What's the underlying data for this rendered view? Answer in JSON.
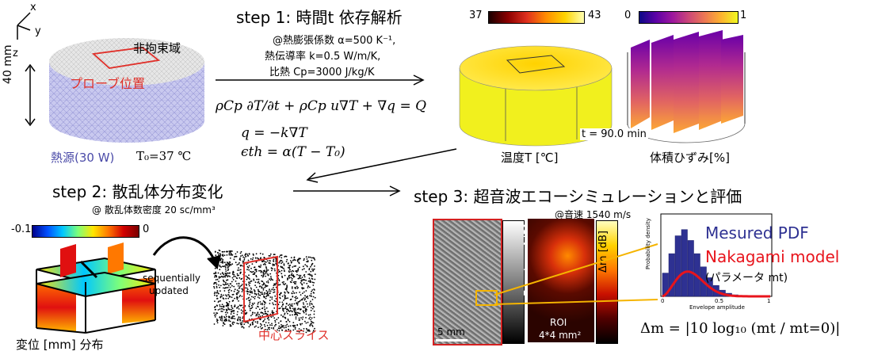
{
  "axes": {
    "x": "x",
    "y": "y",
    "z": "z"
  },
  "model": {
    "height_label": "40 mm",
    "unconstrained_label": "非拘束域",
    "probe_label": "プローブ位置",
    "heat_source_label": "熱源(30 W)",
    "t0_label": "T₀=37 ℃"
  },
  "step1": {
    "title": "step 1: 時間t 依存解析",
    "param1": "@熱膨張係数 α=500 K⁻¹,",
    "param2": "熱伝導率 k=0.5 W/m/K,",
    "param3": "比熱 Cp=3000 J/kg/K",
    "eq1": "ρCp ∂T/∂t + ρCp u∇T + ∇q = Q",
    "eq2": "q = −k∇T",
    "eq3": "ϵth = α(T − T₀)"
  },
  "results": {
    "temp_min": "37",
    "temp_max": "43",
    "strain_min": "0",
    "strain_max": "1",
    "time_label": "t = 90.0 min",
    "temp_caption": "温度T [℃]",
    "strain_caption": "体積ひずみ[%]"
  },
  "step2": {
    "title": "step 2: 散乱体分布変化",
    "subtitle": "@ 散乱体数密度 20 sc/mm³",
    "cb_min": "-0.1",
    "cb_max": "0",
    "seq_label_1": "sequentially",
    "seq_label_2": "updated",
    "disp_caption": "変位 [mm] 分布",
    "slice_label": "中心スライス"
  },
  "step3": {
    "title": "step 3: 超音波エコーシミュレーションと評価",
    "subtitle": "@音速 1540 m/s",
    "envelope_label": "Envelope [dB]",
    "dm_label": "Δm [dB]",
    "scale_label": "5 mm",
    "roi_label_1": "ROI",
    "roi_label_2": "4*4 mm²",
    "hist_ylabel": "Probability density",
    "hist_xlabel": "Envelope amplitude",
    "hist_ticks": [
      "0",
      "0.5",
      "1"
    ],
    "legend_pdf": "Mesured PDF",
    "legend_model": "Nakagami model",
    "legend_param": "(パラメータ mt)",
    "dm_formula": "Δm = |10 log₁₀ (mt / mt=0)|"
  },
  "colors": {
    "probe_red": "#e0302a",
    "heat_blue": "#4b4ba8",
    "pdf_blue": "#2e3192",
    "model_red": "#e8141c",
    "roi_orange": "#f5b400"
  }
}
